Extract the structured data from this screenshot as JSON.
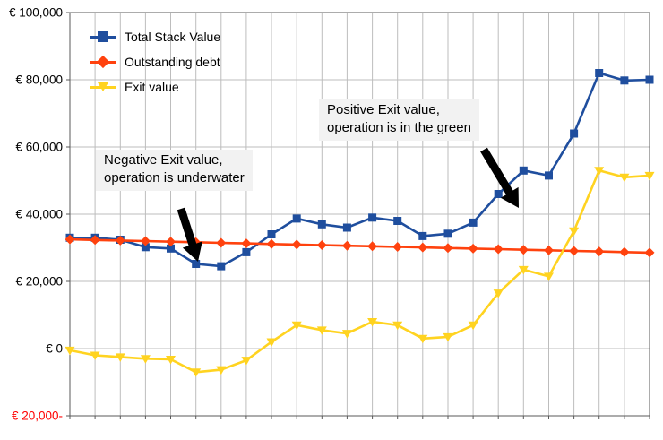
{
  "chart_data": {
    "type": "line",
    "title": "",
    "x_count": 24,
    "x_axis_labels_visible": false,
    "grid": true,
    "legend_position": "top-left-inside",
    "series": [
      {
        "name": "Total Stack Value",
        "color": "#1f4e9e",
        "marker": "square",
        "values": [
          33000,
          33000,
          32400,
          30200,
          29800,
          25200,
          24500,
          28700,
          34000,
          38700,
          37000,
          36000,
          39000,
          38000,
          33500,
          34200,
          37500,
          46000,
          53000,
          51500,
          64000,
          82000,
          79800,
          80000
        ]
      },
      {
        "name": "Outstanding debt",
        "color": "#ff420e",
        "marker": "diamond",
        "values": [
          32500,
          32330,
          32160,
          31990,
          31820,
          31650,
          31480,
          31300,
          31130,
          30960,
          30790,
          30620,
          30450,
          30280,
          30100,
          29930,
          29760,
          29590,
          29420,
          29250,
          29080,
          28900,
          28730,
          28560
        ]
      },
      {
        "name": "Exit value",
        "color": "#ffd320",
        "marker": "triangle-down",
        "values": [
          -500,
          -2000,
          -2500,
          -3000,
          -3200,
          -7000,
          -6300,
          -3500,
          2000,
          7000,
          5500,
          4500,
          8000,
          7000,
          3000,
          3500,
          7000,
          16500,
          23500,
          21500,
          35000,
          53000,
          51000,
          51500
        ]
      }
    ],
    "y_axis": {
      "range": [
        -20000,
        100000
      ],
      "step": 20000,
      "ticks": [
        {
          "value": 100000,
          "label": "€ 100,000",
          "color": "#000000"
        },
        {
          "value": 80000,
          "label": "€ 80,000",
          "color": "#000000"
        },
        {
          "value": 60000,
          "label": "€ 60,000",
          "color": "#000000"
        },
        {
          "value": 40000,
          "label": "€ 40,000",
          "color": "#000000"
        },
        {
          "value": 20000,
          "label": "€ 20,000",
          "color": "#000000"
        },
        {
          "value": 0,
          "label": "€ 0",
          "color": "#000000"
        },
        {
          "value": -20000,
          "label": "€ 20,000-",
          "color": "#ff0000"
        }
      ]
    },
    "annotations": [
      {
        "id": "negative",
        "lines": [
          "Negative Exit value,",
          "operation is underwater"
        ],
        "arrow": {
          "from": [
            202,
            233
          ],
          "to": [
            221,
            292
          ]
        }
      },
      {
        "id": "positive",
        "lines": [
          "Positive Exit value,",
          "operation is in the green"
        ],
        "arrow": {
          "from": [
            540,
            167
          ],
          "to": [
            579,
            232
          ]
        }
      }
    ],
    "colors": {
      "gridline": "#bdbdbd",
      "plot_border": "#595959",
      "arrow": "#000000",
      "annotation_bg": "#f2f2f2"
    }
  }
}
